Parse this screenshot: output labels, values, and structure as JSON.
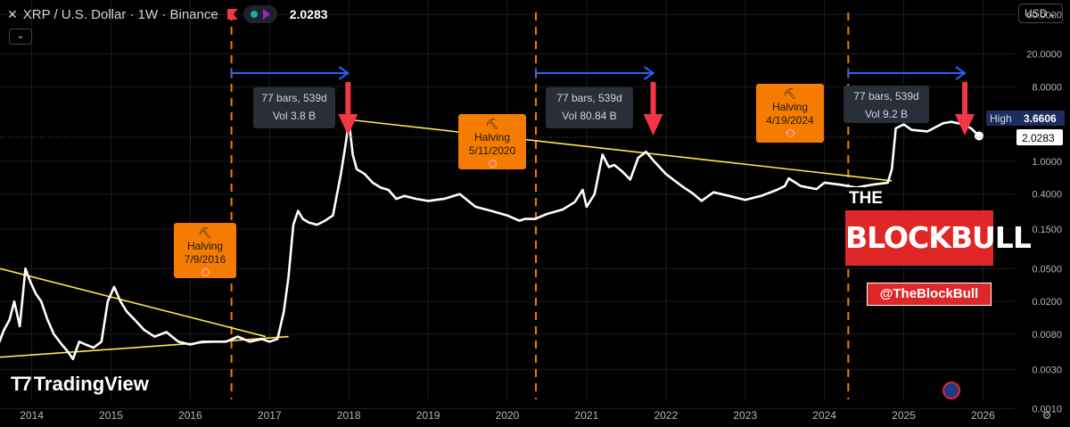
{
  "header": {
    "symbol": "XRP / U.S. Dollar · 1W · Binance",
    "last_price": "2.0283"
  },
  "currency_button": "USD",
  "branding": {
    "logo_text": "TradingView",
    "watermark_the": "THE",
    "watermark_main": "BLOCKBULL",
    "watermark_handle": "@TheBlockBull"
  },
  "price_labels": {
    "high_label": "High",
    "high_value": "3.6606",
    "last_value": "2.0283"
  },
  "halvings": [
    {
      "label": "Halving",
      "date": "7/9/2016",
      "x": 2016.52
    },
    {
      "label": "Halving",
      "date": "5/11/2020",
      "x": 2020.36
    },
    {
      "label": "Halving",
      "date": "4/19/2024",
      "x": 2024.3
    }
  ],
  "measurements": [
    {
      "bars": "77 bars, 539d",
      "vol": "Vol 3.8 B",
      "from": 2016.52,
      "to": 2017.99
    },
    {
      "bars": "77 bars, 539d",
      "vol": "Vol 80.84 B",
      "from": 2020.36,
      "to": 2021.84
    },
    {
      "bars": "77 bars, 539d",
      "vol": "Vol 9.2 B",
      "from": 2024.3,
      "to": 2025.77
    }
  ],
  "colors": {
    "price_line": "#ffffff",
    "trendline": "#ffe94a",
    "halving_line": "#f57c00",
    "measure_arrow": "#2962ff",
    "target_arrow": "#f23645",
    "high_badge": "#1c2e5e",
    "grid": "#1a1d24"
  },
  "chart_data": {
    "type": "line",
    "title": "XRP / U.S. Dollar · 1W · Binance",
    "y_scale": "log",
    "xlim": [
      2013.6,
      2026.4
    ],
    "ylim": [
      0.0013,
      90
    ],
    "x_ticks": [
      "2014",
      "2015",
      "2016",
      "2017",
      "2018",
      "2019",
      "2020",
      "2021",
      "2022",
      "2023",
      "2024",
      "2025",
      "2026"
    ],
    "y_ticks": [
      "0.0010",
      "0.0030",
      "0.0080",
      "0.0200",
      "0.0500",
      "0.1500",
      "0.4000",
      "1.0000",
      "8.0000",
      "20.0000",
      "60.0000"
    ],
    "series": [
      {
        "x": [
          2013.58,
          2013.65,
          2013.72,
          2013.78,
          2013.85,
          2013.92,
          2013.98,
          2014.05,
          2014.12,
          2014.2,
          2014.28,
          2014.38,
          2014.45,
          2014.52,
          2014.6,
          2014.68,
          2014.78,
          2014.88,
          2014.96,
          2015.04,
          2015.12,
          2015.2,
          2015.3,
          2015.42,
          2015.55,
          2015.7,
          2015.85,
          2016.0,
          2016.15,
          2016.3,
          2016.45,
          2016.6,
          2016.75,
          2016.9,
          2017.0,
          2017.1,
          2017.18,
          2017.24,
          2017.3,
          2017.36,
          2017.42,
          2017.5,
          2017.6,
          2017.7,
          2017.8,
          2017.9,
          2017.96,
          2018.0,
          2018.05,
          2018.1,
          2018.2,
          2018.3,
          2018.4,
          2018.5,
          2018.6,
          2018.7,
          2018.85,
          2019.0,
          2019.2,
          2019.4,
          2019.6,
          2019.8,
          2020.0,
          2020.15,
          2020.22,
          2020.35,
          2020.5,
          2020.7,
          2020.85,
          2020.95,
          2021.0,
          2021.1,
          2021.2,
          2021.28,
          2021.35,
          2021.45,
          2021.55,
          2021.65,
          2021.75,
          2021.85,
          2022.0,
          2022.2,
          2022.35,
          2022.45,
          2022.6,
          2022.8,
          2023.0,
          2023.2,
          2023.4,
          2023.5,
          2023.55,
          2023.7,
          2023.9,
          2024.0,
          2024.2,
          2024.4,
          2024.6,
          2024.8,
          2024.85,
          2024.9,
          2025.0,
          2025.1,
          2025.3,
          2025.5,
          2025.6,
          2025.75,
          2025.85,
          2025.95
        ],
        "y": [
          0.006,
          0.009,
          0.012,
          0.02,
          0.01,
          0.05,
          0.035,
          0.025,
          0.02,
          0.012,
          0.008,
          0.006,
          0.005,
          0.004,
          0.0065,
          0.006,
          0.0055,
          0.0065,
          0.02,
          0.03,
          0.02,
          0.015,
          0.012,
          0.009,
          0.0075,
          0.0085,
          0.0065,
          0.006,
          0.0065,
          0.0065,
          0.0065,
          0.0075,
          0.0065,
          0.007,
          0.0065,
          0.007,
          0.015,
          0.04,
          0.17,
          0.25,
          0.2,
          0.18,
          0.17,
          0.19,
          0.22,
          0.7,
          1.6,
          3.2,
          1.2,
          0.8,
          0.7,
          0.55,
          0.48,
          0.45,
          0.35,
          0.38,
          0.35,
          0.33,
          0.35,
          0.4,
          0.28,
          0.25,
          0.22,
          0.19,
          0.2,
          0.2,
          0.23,
          0.26,
          0.32,
          0.45,
          0.28,
          0.4,
          1.2,
          0.85,
          0.9,
          0.75,
          0.6,
          1.1,
          1.3,
          1.0,
          0.7,
          0.5,
          0.4,
          0.33,
          0.42,
          0.38,
          0.34,
          0.38,
          0.45,
          0.5,
          0.62,
          0.5,
          0.46,
          0.55,
          0.52,
          0.48,
          0.52,
          0.55,
          0.8,
          2.5,
          2.8,
          2.4,
          2.3,
          2.9,
          3.0,
          2.8,
          2.5,
          2.03
        ]
      }
    ],
    "trendlines": [
      {
        "from": [
          2013.6,
          0.05
        ],
        "to": [
          2016.95,
          0.0075
        ]
      },
      {
        "from": [
          2013.58,
          0.0042
        ],
        "to": [
          2017.24,
          0.0075
        ]
      },
      {
        "from": [
          2017.99,
          3.2
        ],
        "to": [
          2024.85,
          0.58
        ]
      }
    ],
    "last_value": 2.0283,
    "high": 3.6606,
    "grid": true
  }
}
